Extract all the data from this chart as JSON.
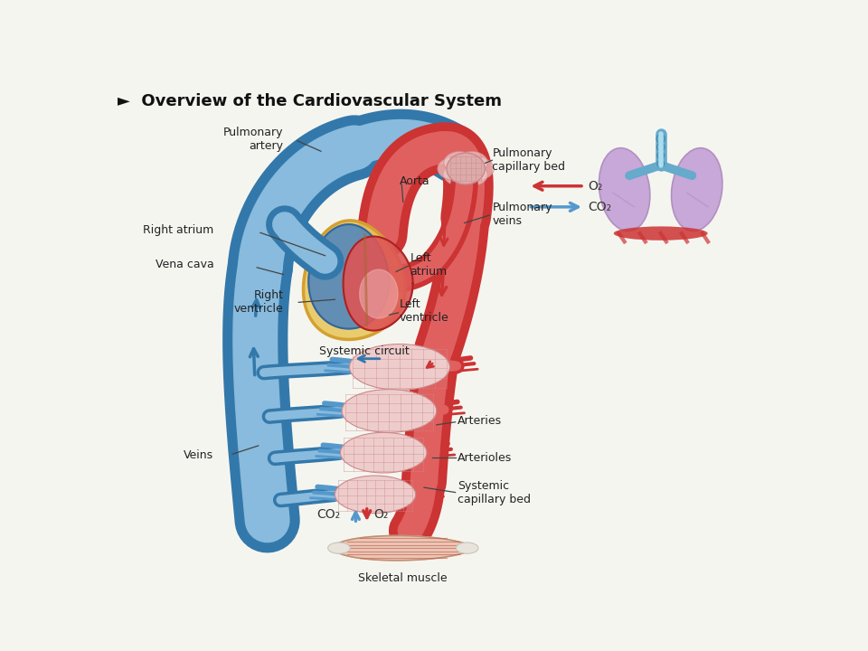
{
  "title": "Overview of the Cardiovascular System",
  "title_symbol": "►",
  "background_color": "#f5f5f0",
  "labels": {
    "pulmonary_artery": "Pulmonary\nartery",
    "aorta": "Aorta",
    "right_atrium": "Right atrium",
    "vena_cava": "Vena cava",
    "left_atrium": "Left\natrium",
    "right_ventricle": "Right\nventricle",
    "left_ventricle": "Left\nventricle",
    "pulmonary_cap_bed": "Pulmonary\ncapillary bed",
    "pulmonary_veins": "Pulmonary\nveins",
    "systemic_circuit": "Systemic circuit",
    "arteries": "Arteries",
    "arterioles": "Arterioles",
    "systemic_cap_bed": "Systemic\ncapillary bed",
    "veins": "Veins",
    "skeletal_muscle": "Skeletal muscle",
    "o2": "O₂",
    "co2": "CO₂"
  },
  "colors": {
    "arterial_red": "#cc3333",
    "arterial_red_light": "#e06060",
    "venous_blue_dark": "#3378aa",
    "venous_blue": "#5599cc",
    "venous_blue_light": "#88bbdd",
    "heart_yellow": "#d4a030",
    "heart_yellow_light": "#e8c860",
    "heart_blue": "#4477aa",
    "heart_red": "#cc3333",
    "capillary_pink_dark": "#cc8888",
    "capillary_pink": "#ddaaaa",
    "capillary_pink_light": "#eecccc",
    "lung_purple": "#b090c0",
    "lung_purple_light": "#c8a8d8",
    "lung_red": "#cc3333",
    "muscle_red": "#cc5544",
    "muscle_light": "#e8c8b8",
    "text_dark": "#222222",
    "trachea_blue": "#66aacc"
  },
  "figsize": [
    9.6,
    7.2
  ],
  "dpi": 100
}
